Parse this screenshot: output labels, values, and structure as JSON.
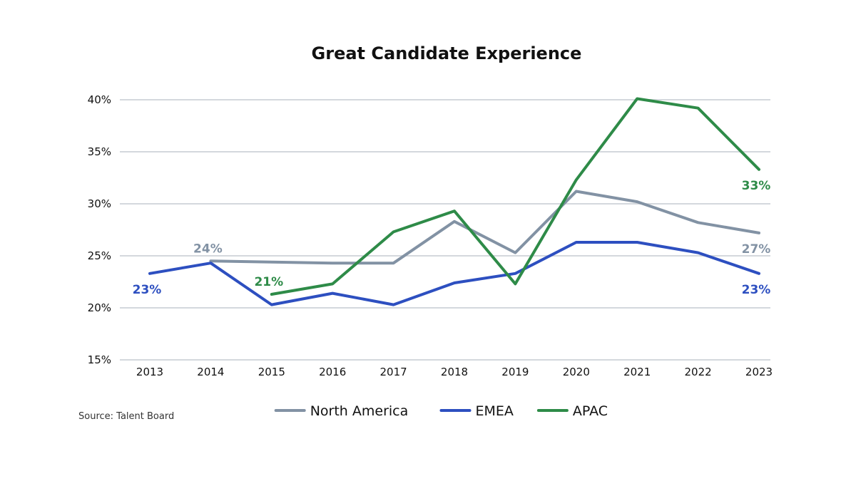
{
  "chart_data": {
    "type": "line",
    "title": "Great Candidate Experience",
    "x": [
      "2013",
      "2014",
      "2015",
      "2016",
      "2017",
      "2018",
      "2019",
      "2020",
      "2021",
      "2022",
      "2023"
    ],
    "y_ticks": [
      "15%",
      "20%",
      "25%",
      "30%",
      "35%",
      "40%"
    ],
    "ylim": [
      15,
      40
    ],
    "grid": true,
    "legend_position": "bottom",
    "series": [
      {
        "name": "North America",
        "color": "#8292a4",
        "values": [
          null,
          24.5,
          24.4,
          24.3,
          24.3,
          28.3,
          25.3,
          31.2,
          30.2,
          28.2,
          27.2
        ]
      },
      {
        "name": "EMEA",
        "color": "#2d4fc0",
        "values": [
          23.3,
          24.3,
          20.3,
          21.4,
          20.3,
          22.4,
          23.3,
          26.3,
          26.3,
          25.3,
          23.3
        ]
      },
      {
        "name": "APAC",
        "color": "#2e8b48",
        "values": [
          null,
          null,
          21.3,
          22.3,
          27.3,
          29.3,
          22.3,
          32.3,
          40.1,
          39.2,
          33.3
        ]
      }
    ],
    "annotations": [
      {
        "series": 0,
        "index": 1,
        "text": "24%",
        "placement": "above"
      },
      {
        "series": 0,
        "index": 10,
        "text": "27%",
        "placement": "below"
      },
      {
        "series": 1,
        "index": 0,
        "text": "23%",
        "placement": "below"
      },
      {
        "series": 1,
        "index": 10,
        "text": "23%",
        "placement": "below"
      },
      {
        "series": 2,
        "index": 2,
        "text": "21%",
        "placement": "above"
      },
      {
        "series": 2,
        "index": 10,
        "text": "33%",
        "placement": "below"
      }
    ]
  },
  "source": "Source: Talent Board"
}
